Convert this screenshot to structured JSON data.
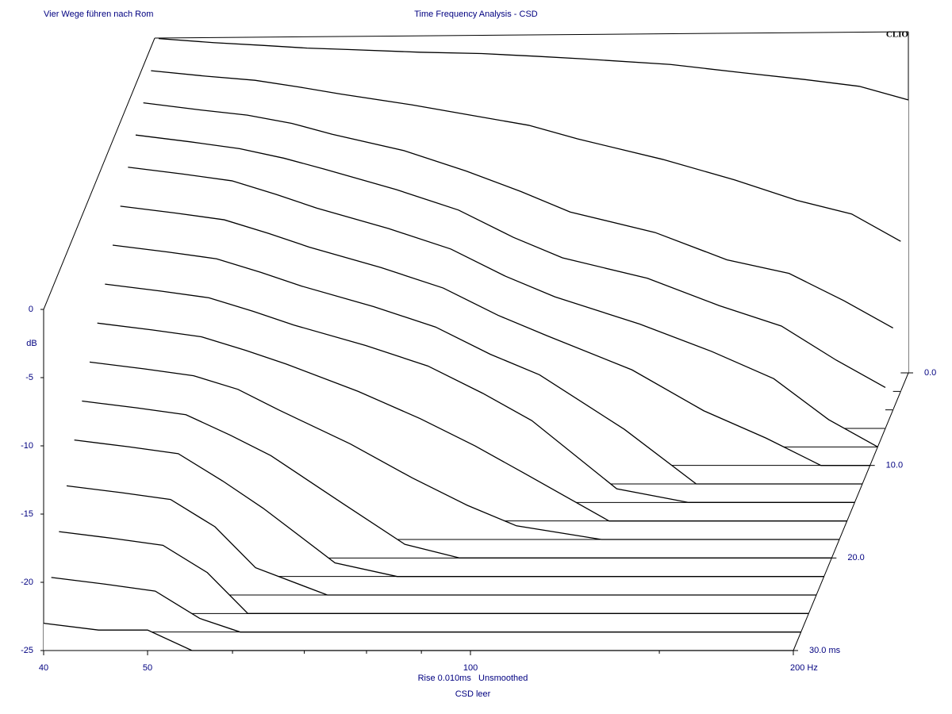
{
  "chart_data": {
    "type": "waterfall",
    "title": "Time Frequency Analysis - CSD",
    "subtitle": "Vier Wege führen nach Rom",
    "brand": "CLIO",
    "ylabel": "dB",
    "footer1": "Rise 0.010ms   Unsmoothed",
    "footer2": "CSD leer",
    "xlog": true,
    "xlim": [
      40,
      200
    ],
    "xticks": [
      40,
      50,
      100,
      {
        "value": 200,
        "label": "200 Hz"
      }
    ],
    "xminor": [
      60,
      70,
      80,
      90,
      150
    ],
    "ylim": [
      -25,
      0
    ],
    "yticks": [
      0,
      -5,
      -10,
      -15,
      -20,
      -25
    ],
    "zlim": [
      0,
      30
    ],
    "zticks": [
      {
        "value": 0,
        "label": "0.0"
      },
      {
        "value": 10,
        "label": "10.0"
      },
      {
        "value": 20,
        "label": "20.0"
      },
      {
        "value": 30,
        "label": "30.0 ms"
      }
    ],
    "x": [
      40,
      45,
      50,
      55,
      60,
      70,
      80,
      90,
      100,
      120,
      140,
      160,
      180,
      200
    ],
    "slices": [
      {
        "z": 0,
        "values": [
          -0.5,
          -0.8,
          -1.0,
          -1.2,
          -1.3,
          -1.5,
          -1.6,
          -1.8,
          -2.0,
          -2.4,
          -3.0,
          -3.5,
          -4.0,
          -5.0
        ]
      },
      {
        "z": 2,
        "values": [
          -1.5,
          -1.9,
          -2.2,
          -2.7,
          -3.2,
          -4.0,
          -4.8,
          -5.5,
          -6.5,
          -8.0,
          -9.5,
          -11,
          -12,
          -14
        ]
      },
      {
        "z": 4,
        "values": [
          -2.5,
          -3,
          -3.4,
          -4,
          -4.8,
          -6,
          -7.5,
          -9,
          -10.5,
          -12,
          -14,
          -15,
          -17,
          -19
        ]
      },
      {
        "z": 6,
        "values": [
          -3.5,
          -4,
          -4.5,
          -5.2,
          -6,
          -7.5,
          -9,
          -11,
          -12.5,
          -14,
          -16,
          -17.5,
          -20,
          -22
        ]
      },
      {
        "z": 8,
        "values": [
          -4.5,
          -5,
          -5.5,
          -6.5,
          -7.5,
          -9,
          -10.5,
          -12.5,
          -14,
          -16,
          -18,
          -20,
          -23,
          -25
        ]
      },
      {
        "z": 10,
        "values": [
          -6,
          -6.5,
          -7,
          -8,
          -9,
          -10.5,
          -12,
          -14,
          -15.5,
          -18,
          -21,
          -23,
          -25,
          -25
        ]
      },
      {
        "z": 12,
        "values": [
          -7.5,
          -8,
          -8.5,
          -9.5,
          -10.5,
          -12,
          -13.5,
          -15.5,
          -17,
          -21,
          -25,
          -25,
          -25,
          -25
        ]
      },
      {
        "z": 14,
        "values": [
          -9,
          -9.5,
          -10,
          -11,
          -12,
          -13.5,
          -15,
          -17,
          -19,
          -24,
          -25,
          -25,
          -25,
          -25
        ]
      },
      {
        "z": 16,
        "values": [
          -10.5,
          -11,
          -11.5,
          -12.5,
          -13.5,
          -15.5,
          -17.5,
          -19.5,
          -21.5,
          -25,
          -25,
          -25,
          -25,
          -25
        ]
      },
      {
        "z": 18,
        "values": [
          -12,
          -12.5,
          -13,
          -14,
          -15.5,
          -18,
          -20.5,
          -22.5,
          -24,
          -25,
          -25,
          -25,
          -25,
          -25
        ]
      },
      {
        "z": 20,
        "values": [
          -13.5,
          -14,
          -14.5,
          -16,
          -17.5,
          -21,
          -24,
          -25,
          -25,
          -25,
          -25,
          -25,
          -25,
          -25
        ]
      },
      {
        "z": 22,
        "values": [
          -15,
          -15.5,
          -16,
          -18,
          -20,
          -24,
          -25,
          -25,
          -25,
          -25,
          -25,
          -25,
          -25,
          -25
        ]
      },
      {
        "z": 24,
        "values": [
          -17,
          -17.5,
          -18,
          -20,
          -23,
          -25,
          -25,
          -25,
          -25,
          -25,
          -25,
          -25,
          -25,
          -25
        ]
      },
      {
        "z": 26,
        "values": [
          -19,
          -19.5,
          -20,
          -22,
          -25,
          -25,
          -25,
          -25,
          -25,
          -25,
          -25,
          -25,
          -25,
          -25
        ]
      },
      {
        "z": 28,
        "values": [
          -21,
          -21.5,
          -22,
          -24,
          -25,
          -25,
          -25,
          -25,
          -25,
          -25,
          -25,
          -25,
          -25,
          -25
        ]
      },
      {
        "z": 30,
        "values": [
          -23,
          -23.5,
          -23.5,
          -25,
          -25,
          -25,
          -25,
          -25,
          -25,
          -25,
          -25,
          -25,
          -25,
          -25
        ]
      }
    ]
  }
}
